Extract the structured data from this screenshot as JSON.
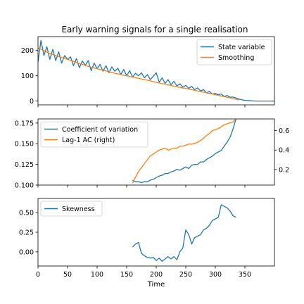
{
  "chart_data": {
    "type": "line",
    "title": "Early warning signals for a single realisation",
    "xlabel": "Time",
    "xlim": [
      0,
      400
    ],
    "xticks": [
      0,
      50,
      100,
      150,
      200,
      250,
      300,
      350
    ],
    "panels": [
      {
        "id": "state",
        "ylim": [
          -15,
          255
        ],
        "yticks": [
          0,
          100,
          200
        ],
        "legend_position": "top-right",
        "series": [
          {
            "name": "State variable",
            "color": "#1f77b4",
            "x": [
              0,
              5,
              10,
              15,
              20,
              25,
              30,
              35,
              40,
              45,
              50,
              55,
              60,
              65,
              70,
              75,
              80,
              85,
              90,
              95,
              100,
              105,
              110,
              115,
              120,
              125,
              130,
              135,
              140,
              145,
              150,
              155,
              160,
              165,
              170,
              175,
              180,
              185,
              190,
              195,
              200,
              205,
              210,
              215,
              220,
              225,
              230,
              235,
              240,
              245,
              250,
              255,
              260,
              265,
              270,
              275,
              280,
              285,
              290,
              295,
              300,
              305,
              310,
              315,
              320,
              325,
              330,
              335,
              340,
              345,
              350,
              360,
              370,
              380,
              390,
              400
            ],
            "y": [
              155,
              240,
              180,
              215,
              165,
              205,
              160,
              195,
              150,
              180,
              165,
              175,
              140,
              168,
              132,
              158,
              142,
              160,
              120,
              150,
              128,
              145,
              118,
              140,
              112,
              135,
              118,
              130,
              105,
              125,
              100,
              120,
              95,
              110,
              100,
              112,
              92,
              105,
              85,
              98,
              112,
              75,
              92,
              70,
              85,
              65,
              78,
              60,
              68,
              55,
              62,
              50,
              58,
              45,
              52,
              40,
              45,
              32,
              38,
              28,
              30,
              25,
              28,
              18,
              22,
              15,
              16,
              12,
              8,
              5,
              3,
              1,
              0,
              0,
              0,
              0
            ]
          },
          {
            "name": "Smoothing",
            "color": "#ff7f0e",
            "x": [
              0,
              10,
              20,
              30,
              40,
              50,
              60,
              70,
              80,
              90,
              100,
              110,
              120,
              130,
              140,
              150,
              160,
              170,
              180,
              190,
              200,
              210,
              220,
              230,
              240,
              250,
              260,
              270,
              280,
              290,
              300,
              310,
              320,
              330,
              340
            ],
            "y": [
              210,
              200,
              188,
              180,
              172,
              165,
              157,
              149,
              141,
              134,
              128,
              122,
              116,
              110,
              105,
              100,
              95,
              90,
              85,
              80,
              74,
              69,
              64,
              59,
              54,
              50,
              45,
              40,
              35,
              30,
              25,
              20,
              15,
              10,
              4
            ]
          }
        ]
      },
      {
        "id": "cv",
        "ylim": [
          0.1,
          0.18
        ],
        "yticks": [
          "0.100",
          "0.125",
          "0.150",
          "0.175"
        ],
        "right_ylim": [
          0.04,
          0.72
        ],
        "right_yticks": [
          "0.2",
          "0.4",
          "0.6"
        ],
        "legend_position": "top-left",
        "series": [
          {
            "name": "Coefficient of variation",
            "color": "#1f77b4",
            "axis": "left",
            "x": [
              160,
              165,
              170,
              175,
              180,
              185,
              190,
              195,
              200,
              205,
              210,
              215,
              220,
              225,
              230,
              235,
              240,
              245,
              250,
              255,
              260,
              265,
              270,
              275,
              280,
              285,
              290,
              295,
              300,
              305,
              310,
              315,
              320,
              325,
              330,
              335
            ],
            "y": [
              0.106,
              0.104,
              0.104,
              0.103,
              0.104,
              0.104,
              0.106,
              0.107,
              0.109,
              0.111,
              0.112,
              0.114,
              0.114,
              0.116,
              0.117,
              0.119,
              0.118,
              0.12,
              0.122,
              0.12,
              0.124,
              0.125,
              0.125,
              0.128,
              0.128,
              0.131,
              0.133,
              0.135,
              0.138,
              0.14,
              0.142,
              0.147,
              0.152,
              0.158,
              0.168,
              0.18
            ]
          },
          {
            "name": "Lag-1 AC (right)",
            "color": "#ff7f0e",
            "axis": "right",
            "x": [
              160,
              165,
              170,
              175,
              180,
              185,
              190,
              195,
              200,
              205,
              210,
              215,
              220,
              225,
              230,
              235,
              240,
              245,
              250,
              255,
              260,
              265,
              270,
              275,
              280,
              285,
              290,
              295,
              300,
              305,
              310,
              315,
              320,
              325,
              330,
              335
            ],
            "y": [
              0.06,
              0.12,
              0.18,
              0.22,
              0.26,
              0.3,
              0.34,
              0.36,
              0.38,
              0.4,
              0.41,
              0.42,
              0.4,
              0.41,
              0.42,
              0.42,
              0.44,
              0.44,
              0.45,
              0.46,
              0.46,
              0.47,
              0.48,
              0.5,
              0.52,
              0.55,
              0.57,
              0.6,
              0.61,
              0.62,
              0.64,
              0.66,
              0.67,
              0.68,
              0.69,
              0.72
            ]
          }
        ]
      },
      {
        "id": "skew",
        "ylim": [
          -0.18,
          0.68
        ],
        "yticks": [
          "0.00",
          "0.25",
          "0.50"
        ],
        "legend_position": "top-left",
        "series": [
          {
            "name": "Skewness",
            "color": "#1f77b4",
            "x": [
              160,
              165,
              170,
              175,
              180,
              185,
              190,
              195,
              200,
              205,
              210,
              215,
              220,
              225,
              230,
              235,
              240,
              245,
              250,
              255,
              260,
              265,
              270,
              275,
              280,
              285,
              290,
              295,
              300,
              305,
              310,
              315,
              320,
              325,
              330,
              335
            ],
            "y": [
              0.06,
              0.1,
              0.12,
              -0.02,
              -0.05,
              -0.07,
              -0.08,
              -0.07,
              -0.11,
              -0.08,
              -0.12,
              -0.09,
              -0.06,
              -0.09,
              -0.06,
              -0.1,
              0.0,
              0.05,
              0.28,
              0.22,
              0.1,
              0.18,
              0.2,
              0.22,
              0.28,
              0.3,
              0.34,
              0.4,
              0.42,
              0.44,
              0.6,
              0.58,
              0.56,
              0.52,
              0.46,
              0.44
            ]
          }
        ]
      }
    ]
  }
}
